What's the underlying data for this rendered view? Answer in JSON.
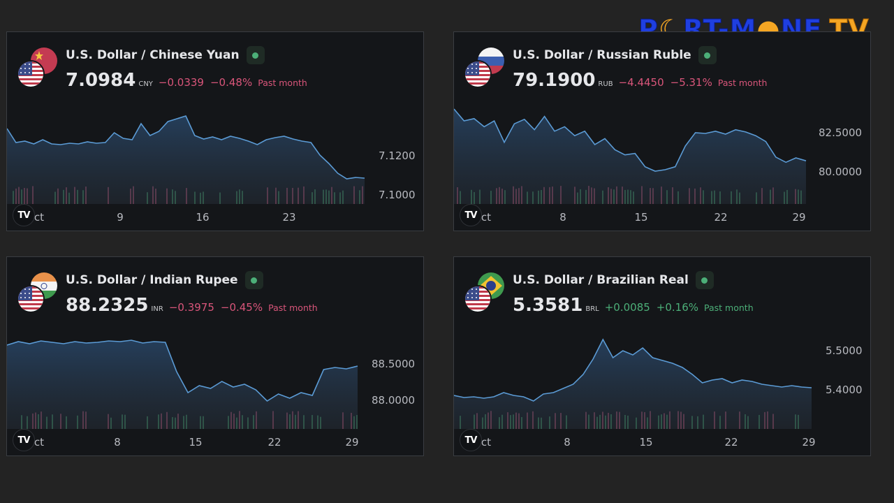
{
  "logo": {
    "text_a": "P",
    "text_b": "RT-M",
    "text_c": "NE",
    "text_tv": "TV"
  },
  "brand_badge": "TV",
  "cards": [
    {
      "title": "U.S. Dollar / Chinese Yuan",
      "price": "7.0984",
      "currency": "CNY",
      "change": "−0.0339",
      "change_pct": "−0.48%",
      "period": "Past month",
      "direction": "neg",
      "y_ticks": [
        "7.1200",
        "7.1000"
      ],
      "x_ticks": [
        "Oct",
        "9",
        "16",
        "23"
      ],
      "chart_data": {
        "type": "area",
        "y_ticks": [
          7.12,
          7.1
        ]
      }
    },
    {
      "title": "U.S. Dollar / Russian Ruble",
      "price": "79.1900",
      "currency": "RUB",
      "change": "−4.4450",
      "change_pct": "−5.31%",
      "period": "Past month",
      "direction": "neg",
      "y_ticks": [
        "82.5000",
        "80.0000"
      ],
      "x_ticks": [
        "Oct",
        "8",
        "15",
        "22",
        "29"
      ],
      "chart_data": {
        "type": "area",
        "y_ticks": [
          82.5,
          80.0
        ]
      }
    },
    {
      "title": "U.S. Dollar / Indian Rupee",
      "price": "88.2325",
      "currency": "INR",
      "change": "−0.3975",
      "change_pct": "−0.45%",
      "period": "Past month",
      "direction": "neg",
      "y_ticks": [
        "88.5000",
        "88.0000"
      ],
      "x_ticks": [
        "Oct",
        "8",
        "15",
        "22",
        "29"
      ],
      "chart_data": {
        "type": "area",
        "y_ticks": [
          88.5,
          88.0
        ]
      }
    },
    {
      "title": "U.S. Dollar / Brazilian Real",
      "price": "5.3581",
      "currency": "BRL",
      "change": "+0.0085",
      "change_pct": "+0.16%",
      "period": "Past month",
      "direction": "pos",
      "y_ticks": [
        "5.5000",
        "5.4000"
      ],
      "x_ticks": [
        "Oct",
        "8",
        "15",
        "22",
        "29"
      ],
      "chart_data": {
        "type": "area",
        "y_ticks": [
          5.5,
          5.4
        ]
      }
    }
  ],
  "colors": {
    "line": "#5b9bd5",
    "up": "#3d8a5e",
    "down": "#a04a66"
  }
}
